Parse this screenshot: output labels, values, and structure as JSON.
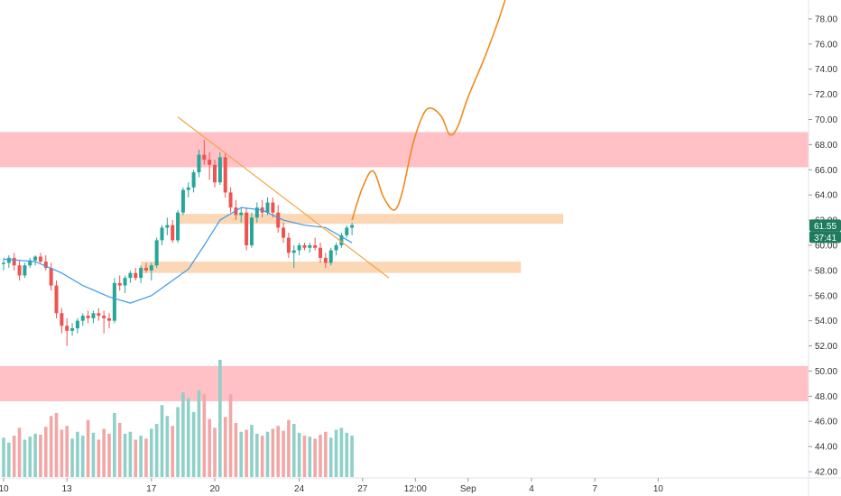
{
  "chart_data": {
    "type": "candlestick",
    "title": "",
    "xlabel": "",
    "ylabel": "",
    "ylim": [
      41.5,
      79.5
    ],
    "y_ticks": [
      "42.00",
      "44.00",
      "46.00",
      "48.00",
      "50.00",
      "52.00",
      "54.00",
      "56.00",
      "58.00",
      "60.00",
      "62.00",
      "64.00",
      "66.00",
      "68.00",
      "70.00",
      "72.00",
      "74.00",
      "76.00",
      "78.00"
    ],
    "x_ticks": [
      {
        "label": "10",
        "i": 0
      },
      {
        "label": "13",
        "i": 12
      },
      {
        "label": "17",
        "i": 28
      },
      {
        "label": "20",
        "i": 40
      },
      {
        "label": "24",
        "i": 56
      },
      {
        "label": "27",
        "i": 68
      },
      {
        "label": "12:00",
        "i": 78
      },
      {
        "label": "Sep",
        "i": 88
      },
      {
        "label": "4",
        "i": 100
      },
      {
        "label": "7",
        "i": 112
      },
      {
        "label": "10",
        "i": 124
      }
    ],
    "candles": [
      [
        58.5,
        59.0,
        58.0,
        58.6,
        4.0
      ],
      [
        58.6,
        59.2,
        58.2,
        59.0,
        3.5
      ],
      [
        59.0,
        59.4,
        58.0,
        58.4,
        4.2
      ],
      [
        58.4,
        58.8,
        57.2,
        57.6,
        5.0
      ],
      [
        57.6,
        58.6,
        57.4,
        58.4,
        3.8
      ],
      [
        58.4,
        59.0,
        58.2,
        58.8,
        4.1
      ],
      [
        58.8,
        59.2,
        58.4,
        59.1,
        4.4
      ],
      [
        59.1,
        59.4,
        58.6,
        58.7,
        4.3
      ],
      [
        58.7,
        59.2,
        58.0,
        58.2,
        5.1
      ],
      [
        58.2,
        58.6,
        56.4,
        56.8,
        6.2
      ],
      [
        56.8,
        57.2,
        54.2,
        54.6,
        6.5
      ],
      [
        54.6,
        55.0,
        53.0,
        53.6,
        4.8
      ],
      [
        53.6,
        54.2,
        52.0,
        53.2,
        5.2
      ],
      [
        53.2,
        53.8,
        52.8,
        53.4,
        3.9
      ],
      [
        53.4,
        54.2,
        53.0,
        54.0,
        4.6
      ],
      [
        54.0,
        54.6,
        53.6,
        54.4,
        4.2
      ],
      [
        54.4,
        54.8,
        53.8,
        54.2,
        5.8
      ],
      [
        54.2,
        54.8,
        53.8,
        54.6,
        4.5
      ],
      [
        54.6,
        55.0,
        54.0,
        54.4,
        3.8
      ],
      [
        54.4,
        54.8,
        53.0,
        54.2,
        4.9
      ],
      [
        54.2,
        54.6,
        53.4,
        54.0,
        4.4
      ],
      [
        54.0,
        57.4,
        53.8,
        57.0,
        6.5
      ],
      [
        57.0,
        57.6,
        56.4,
        56.8,
        5.5
      ],
      [
        56.8,
        57.6,
        56.2,
        57.4,
        4.4
      ],
      [
        57.4,
        58.0,
        57.0,
        57.8,
        4.6
      ],
      [
        57.8,
        58.2,
        57.2,
        57.4,
        3.8
      ],
      [
        57.4,
        58.4,
        57.0,
        58.2,
        4.2
      ],
      [
        58.2,
        58.6,
        57.8,
        58.0,
        3.9
      ],
      [
        58.0,
        58.6,
        57.2,
        58.4,
        4.9
      ],
      [
        58.4,
        60.6,
        58.2,
        60.4,
        5.4
      ],
      [
        60.4,
        61.6,
        60.0,
        61.4,
        7.3
      ],
      [
        61.4,
        62.2,
        60.8,
        61.6,
        6.2
      ],
      [
        61.6,
        62.0,
        60.2,
        60.4,
        5.2
      ],
      [
        60.4,
        62.8,
        60.2,
        62.6,
        7.1
      ],
      [
        62.6,
        64.6,
        62.4,
        64.4,
        8.6
      ],
      [
        64.4,
        65.0,
        63.8,
        64.6,
        8.0
      ],
      [
        64.6,
        66.0,
        64.2,
        65.8,
        6.6
      ],
      [
        65.8,
        67.6,
        65.4,
        67.2,
        8.8
      ],
      [
        67.2,
        68.4,
        66.4,
        66.8,
        8.4
      ],
      [
        66.8,
        67.4,
        65.2,
        66.4,
        5.9
      ],
      [
        66.4,
        66.8,
        64.6,
        65.0,
        5.0
      ],
      [
        65.0,
        67.4,
        64.8,
        67.0,
        11.9
      ],
      [
        67.0,
        67.4,
        63.8,
        64.2,
        6.1
      ],
      [
        64.2,
        64.6,
        62.6,
        63.0,
        8.4
      ],
      [
        63.0,
        63.6,
        62.0,
        62.4,
        5.5
      ],
      [
        62.4,
        63.0,
        61.8,
        62.6,
        4.6
      ],
      [
        62.6,
        63.0,
        59.6,
        60.0,
        4.8
      ],
      [
        60.0,
        62.6,
        59.8,
        62.2,
        5.3
      ],
      [
        62.2,
        63.4,
        61.8,
        63.0,
        4.4
      ],
      [
        63.0,
        63.6,
        62.2,
        62.6,
        4.2
      ],
      [
        62.6,
        63.8,
        62.4,
        63.4,
        4.6
      ],
      [
        63.4,
        63.8,
        62.2,
        62.6,
        4.9
      ],
      [
        62.6,
        63.2,
        61.0,
        61.4,
        5.2
      ],
      [
        61.4,
        61.8,
        60.2,
        60.6,
        4.7
      ],
      [
        60.6,
        61.0,
        59.0,
        59.4,
        5.8
      ],
      [
        59.4,
        60.0,
        58.2,
        59.6,
        5.4
      ],
      [
        59.6,
        60.2,
        59.2,
        60.0,
        4.5
      ],
      [
        60.0,
        60.2,
        59.6,
        59.8,
        4.2
      ],
      [
        59.8,
        60.2,
        59.4,
        60.0,
        4.1
      ],
      [
        60.0,
        60.6,
        59.6,
        59.8,
        3.9
      ],
      [
        59.8,
        60.2,
        58.6,
        59.0,
        4.3
      ],
      [
        59.0,
        59.4,
        58.2,
        58.6,
        4.6
      ],
      [
        58.6,
        59.8,
        58.4,
        59.6,
        4.0
      ],
      [
        59.6,
        60.2,
        59.2,
        60.0,
        4.8
      ],
      [
        60.0,
        61.0,
        59.8,
        60.8,
        5.0
      ],
      [
        60.8,
        61.6,
        60.6,
        61.4,
        4.5
      ],
      [
        61.4,
        61.8,
        60.8,
        61.6,
        4.2
      ]
    ],
    "ma_line": [
      [
        0,
        58.9
      ],
      [
        6,
        58.7
      ],
      [
        11,
        57.8
      ],
      [
        15,
        56.8
      ],
      [
        20,
        55.9
      ],
      [
        24,
        55.4
      ],
      [
        28,
        56.0
      ],
      [
        32,
        57.2
      ],
      [
        35,
        58.1
      ],
      [
        38,
        60.0
      ],
      [
        41,
        62.0
      ],
      [
        45,
        63.0
      ],
      [
        49,
        62.8
      ],
      [
        53,
        62.0
      ],
      [
        57,
        61.6
      ],
      [
        61,
        61.4
      ],
      [
        66,
        60.2
      ]
    ],
    "projection": [
      [
        66,
        62.0
      ],
      [
        68,
        64.6
      ],
      [
        70,
        65.9
      ],
      [
        72,
        63.8
      ],
      [
        74,
        62.8
      ],
      [
        75.5,
        64.2
      ],
      [
        77.5,
        68.0
      ],
      [
        79.5,
        70.4
      ],
      [
        81,
        70.9
      ],
      [
        83,
        70.2
      ],
      [
        84.5,
        68.8
      ],
      [
        86,
        69.4
      ],
      [
        88,
        71.8
      ],
      [
        91,
        74.8
      ],
      [
        93.5,
        77.6
      ],
      [
        95,
        79.5
      ]
    ],
    "trendline": [
      [
        33,
        70.2
      ],
      [
        73,
        57.4
      ]
    ],
    "resistance_zone": [
      66.2,
      69.0
    ],
    "support_zone": [
      47.6,
      50.4
    ],
    "orange_zones": [
      {
        "from_i": 33,
        "to_i": 106,
        "y": [
          61.7,
          62.5
        ]
      },
      {
        "from_i": 26,
        "to_i": 98,
        "y": [
          57.8,
          58.7
        ]
      }
    ],
    "volume_max": 11.9,
    "current_price": "61.55",
    "countdown": "37:41",
    "colors": {
      "up": "#26a69a",
      "down": "#ef5350",
      "up_volume": "#8fd0c8",
      "down_volume": "#f2a7a6",
      "ma": "#3d9ae8",
      "projection": "#ee8a1e",
      "trendline": "#f2a54a",
      "red_zone": "#ffc0c6",
      "orange_zone": "#fbd3ad",
      "price_tag": "#1e7b5d"
    }
  }
}
